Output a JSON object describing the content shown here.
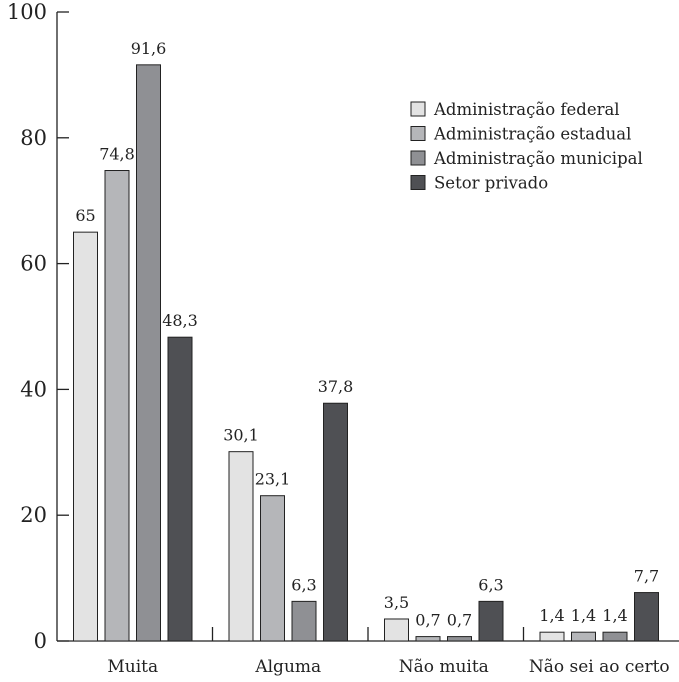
{
  "chart_data": {
    "type": "bar",
    "categories": [
      "Muita",
      "Alguma",
      "Não muita",
      "Não sei ao certo"
    ],
    "series": [
      {
        "name": "Administração federal",
        "color": "#e3e3e3",
        "values": [
          65,
          30.1,
          3.5,
          1.4
        ],
        "labels": [
          "65",
          "30,1",
          "3,5",
          "1,4"
        ]
      },
      {
        "name": "Administração estadual",
        "color": "#b5b6b9",
        "values": [
          74.8,
          23.1,
          0.7,
          1.4
        ],
        "labels": [
          "74,8",
          "23,1",
          "0,7",
          "1,4"
        ]
      },
      {
        "name": "Administração municipal",
        "color": "#8f9094",
        "values": [
          91.6,
          6.3,
          0.7,
          1.4
        ],
        "labels": [
          "91,6",
          "6,3",
          "0,7",
          "1,4"
        ]
      },
      {
        "name": "Setor privado",
        "color": "#4f5054",
        "values": [
          48.3,
          37.8,
          6.3,
          7.7
        ],
        "labels": [
          "48,3",
          "37,8",
          "6,3",
          "7,7"
        ]
      }
    ],
    "ylim": [
      0,
      100
    ],
    "yticks": [
      "0",
      "20",
      "40",
      "60",
      "80",
      "100"
    ],
    "legend_position": "top-right",
    "grid": false
  }
}
